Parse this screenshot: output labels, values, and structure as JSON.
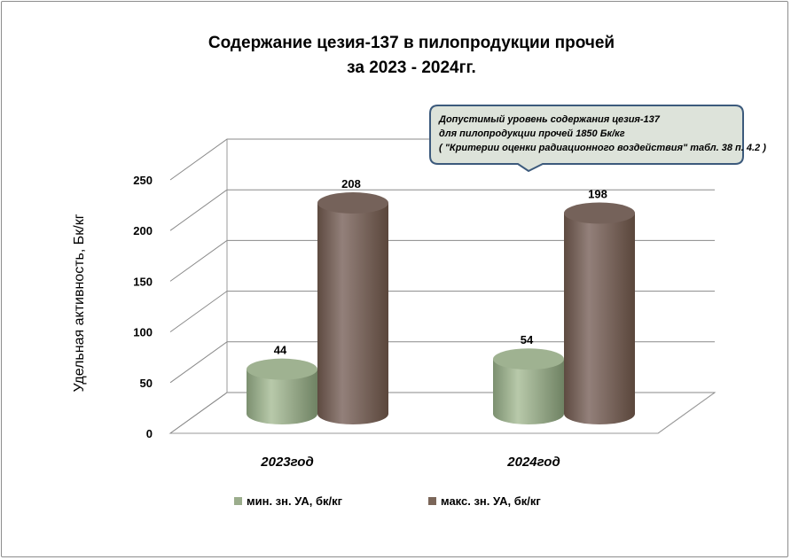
{
  "chart_data": {
    "type": "bar",
    "title": [
      "Содержание цезия-137 в пилопродукции прочей",
      "за 2023 - 2024гг."
    ],
    "ylabel": "Удельная активность, Бк/кг",
    "xlabel": "",
    "ylim": [
      0,
      250
    ],
    "yticks": [
      "0",
      "50",
      "100",
      "150",
      "200",
      "250"
    ],
    "categories": [
      "2023год",
      "2024год"
    ],
    "series": [
      {
        "name": "мин. зн. УА, бк/кг",
        "values": [
          44,
          54
        ],
        "labels": [
          "44",
          "54"
        ],
        "color": "#9bad8c"
      },
      {
        "name": "макс. зн. УА, бк/кг",
        "values": [
          208,
          198
        ],
        "labels": [
          "208",
          "198"
        ],
        "color": "#7b6659"
      }
    ],
    "style": "3d-cylinder",
    "grid": true,
    "legend_position": "bottom"
  },
  "annotation": {
    "lines": [
      "Допустимый уровень содержания цезия-137",
      "для пилопродукции  прочей 1850 Бк/кг",
      "( \"Критерии оценки радиационного воздействия\"  табл. 38 п. 4.2 )"
    ],
    "fill": "#dde3da",
    "border": "#3c5a7c"
  }
}
